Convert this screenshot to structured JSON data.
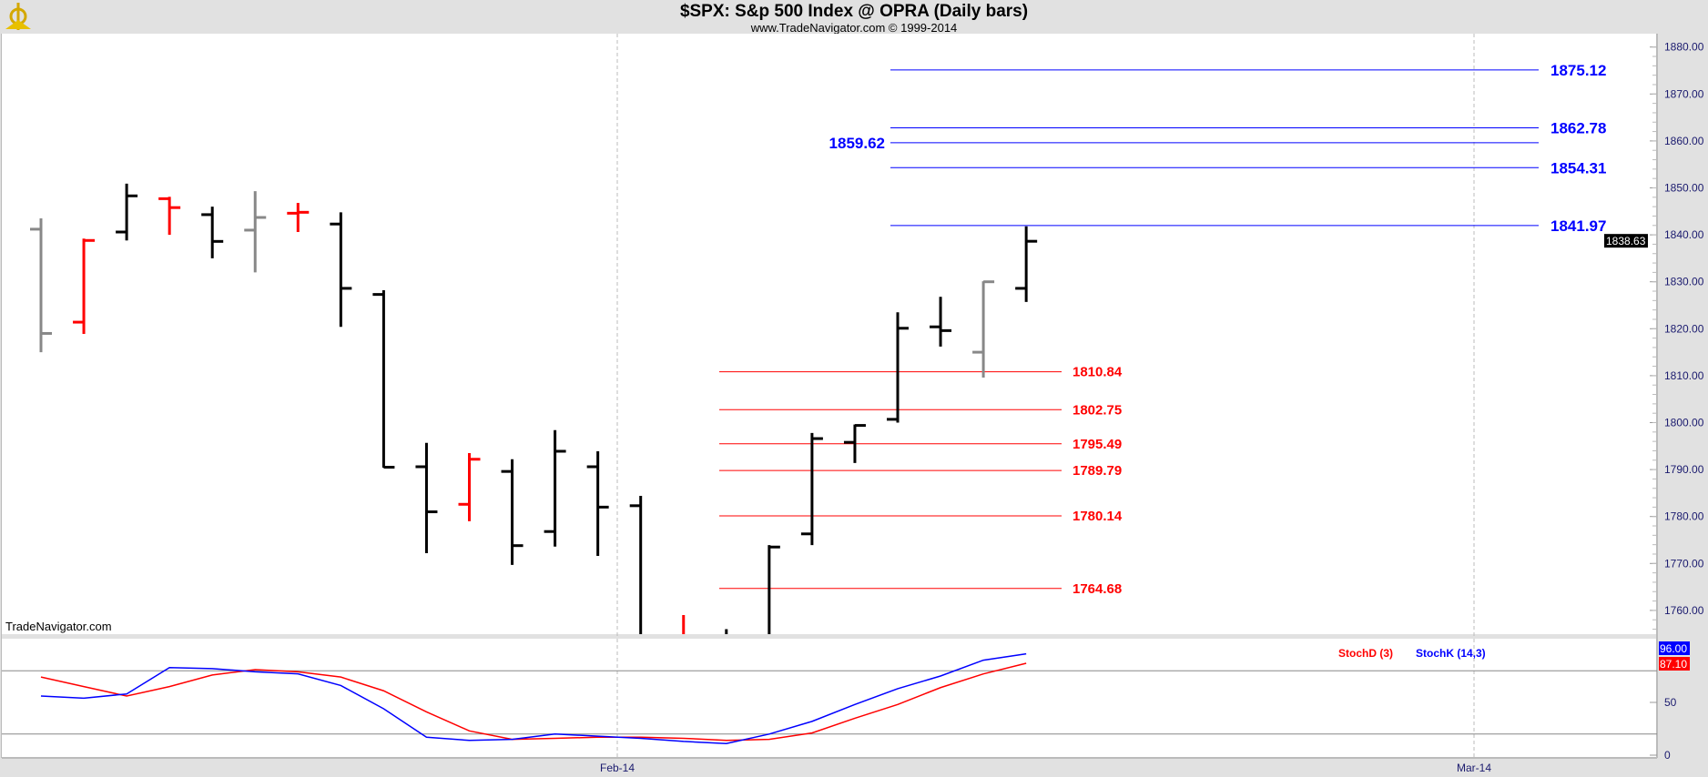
{
  "header": {
    "title": "$SPX:  S&p 500 Index @ OPRA  (Daily bars)",
    "subtitle": "www.TradeNavigator.com © 1999-2014",
    "logo": "sextant-logo"
  },
  "watermark": "TradeNavigator.com",
  "colors": {
    "up": "#000000",
    "down": "#ff0000",
    "neutral": "#888888",
    "extreme": "#00ff00",
    "stochK": "#0000ff",
    "stochD": "#ff0000",
    "resistance": "#0000ff",
    "support": "#ff0000"
  },
  "chart_data": [
    {
      "type": "ohlc",
      "ylim": [
        1755,
        1882
      ],
      "yticks": [
        "1760.00",
        "1770.00",
        "1780.00",
        "1790.00",
        "1800.00",
        "1810.00",
        "1820.00",
        "1830.00",
        "1840.00",
        "1850.00",
        "1860.00",
        "1870.00",
        "1880.00"
      ],
      "xlabels": [
        "Feb-14",
        "Mar-14"
      ],
      "grid": "vertical-dashed-at-month",
      "last_price_tag": "1838.63",
      "bars": [
        {
          "o": 1841.2,
          "h": 1843.5,
          "l": 1815.0,
          "c": 1819.0,
          "color": "neutral"
        },
        {
          "o": 1821.4,
          "h": 1839.2,
          "l": 1818.9,
          "c": 1838.8,
          "color": "down"
        },
        {
          "o": 1840.6,
          "h": 1850.9,
          "l": 1838.8,
          "c": 1848.3,
          "color": "up"
        },
        {
          "o": 1847.7,
          "h": 1848.1,
          "l": 1840.0,
          "c": 1845.8,
          "color": "down"
        },
        {
          "o": 1844.3,
          "h": 1846.0,
          "l": 1835.0,
          "c": 1838.6,
          "color": "up"
        },
        {
          "o": 1841.0,
          "h": 1849.3,
          "l": 1832.0,
          "c": 1843.7,
          "color": "neutral"
        },
        {
          "o": 1844.6,
          "h": 1846.8,
          "l": 1840.6,
          "c": 1844.8,
          "color": "down"
        },
        {
          "o": 1842.3,
          "h": 1844.8,
          "l": 1820.4,
          "c": 1828.6,
          "color": "up"
        },
        {
          "o": 1827.3,
          "h": 1828.2,
          "l": 1790.4,
          "c": 1790.5,
          "color": "up"
        },
        {
          "o": 1790.6,
          "h": 1795.7,
          "l": 1772.2,
          "c": 1781.0,
          "color": "up"
        },
        {
          "o": 1782.6,
          "h": 1793.5,
          "l": 1779.0,
          "c": 1792.2,
          "color": "down"
        },
        {
          "o": 1789.6,
          "h": 1792.2,
          "l": 1769.7,
          "c": 1773.8,
          "color": "up"
        },
        {
          "o": 1776.8,
          "h": 1798.4,
          "l": 1773.6,
          "c": 1793.9,
          "color": "up"
        },
        {
          "o": 1790.6,
          "h": 1793.9,
          "l": 1771.6,
          "c": 1782.0,
          "color": "up"
        },
        {
          "o": 1782.3,
          "h": 1784.4,
          "l": 1739.0,
          "c": 1748.0,
          "color": "up"
        },
        {
          "o": 1750.0,
          "h": 1759.0,
          "l": 1737.0,
          "c": 1752.0,
          "color": "down"
        },
        {
          "o": 1748.0,
          "h": 1756.0,
          "l": 1737.0,
          "c": 1750.0,
          "color": "up"
        },
        {
          "o": 1745.0,
          "h": 1773.9,
          "l": 1740.0,
          "c": 1773.5,
          "color": "up"
        },
        {
          "o": 1776.3,
          "h": 1797.8,
          "l": 1773.9,
          "c": 1796.6,
          "color": "up"
        },
        {
          "o": 1795.8,
          "h": 1799.6,
          "l": 1791.4,
          "c": 1799.4,
          "color": "up"
        },
        {
          "o": 1800.7,
          "h": 1823.5,
          "l": 1800.0,
          "c": 1820.1,
          "color": "up"
        },
        {
          "o": 1820.4,
          "h": 1826.8,
          "l": 1816.2,
          "c": 1819.6,
          "color": "up"
        },
        {
          "o": 1815.0,
          "h": 1830.1,
          "l": 1809.6,
          "c": 1830.0,
          "color": "neutral"
        },
        {
          "o": 1828.6,
          "h": 1841.8,
          "l": 1825.7,
          "c": 1838.63,
          "color": "up"
        }
      ],
      "resistance_levels": [
        {
          "value": 1875.12,
          "label": "1875.12",
          "side": "right"
        },
        {
          "value": 1862.78,
          "label": "1862.78",
          "side": "right"
        },
        {
          "value": 1859.62,
          "label": "1859.62",
          "side": "left"
        },
        {
          "value": 1854.31,
          "label": "1854.31",
          "side": "right"
        },
        {
          "value": 1841.97,
          "label": "1841.97",
          "side": "right"
        }
      ],
      "support_levels": [
        {
          "value": 1810.84,
          "label": "1810.84"
        },
        {
          "value": 1802.75,
          "label": "1802.75"
        },
        {
          "value": 1795.49,
          "label": "1795.49"
        },
        {
          "value": 1789.79,
          "label": "1789.79"
        },
        {
          "value": 1780.14,
          "label": "1780.14"
        },
        {
          "value": 1764.68,
          "label": "1764.68"
        }
      ]
    },
    {
      "type": "line",
      "ylim": [
        0,
        100
      ],
      "yticks": [
        "50",
        "0"
      ],
      "reference_lines": [
        80,
        20
      ],
      "legend": "top-right",
      "series": [
        {
          "name": "StochD (3)",
          "tag": "87.10",
          "values": [
            74,
            65,
            56,
            65,
            76,
            81,
            79,
            74,
            61,
            41,
            23,
            15,
            16,
            17,
            17,
            16,
            14,
            15,
            21,
            35,
            48,
            64,
            77,
            87.1
          ]
        },
        {
          "name": "StochK (14,3)",
          "tag": "96.00",
          "values": [
            56,
            54,
            58,
            83,
            82,
            79,
            77,
            66,
            44,
            17,
            14,
            15,
            20,
            18,
            16,
            13,
            11,
            20,
            32,
            48,
            63,
            75,
            90,
            96
          ]
        }
      ]
    }
  ]
}
